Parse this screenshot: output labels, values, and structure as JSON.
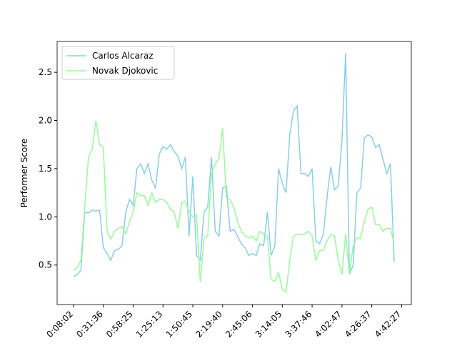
{
  "chart_data": {
    "type": "line",
    "y_label": "Performer Score",
    "x": [
      0,
      1,
      2,
      3,
      4,
      5,
      6,
      7,
      8,
      9,
      10,
      11,
      12,
      13,
      14,
      15,
      16,
      17,
      18,
      19,
      20,
      21,
      22,
      23,
      24,
      25,
      26,
      27,
      28,
      29,
      30,
      31,
      32,
      33,
      34,
      35,
      36,
      37,
      38,
      39,
      40,
      41,
      42,
      43,
      44,
      45,
      46,
      47,
      48,
      49,
      50,
      51,
      52,
      53,
      54,
      55,
      56,
      57,
      58,
      59,
      60,
      61,
      62,
      63,
      64,
      65,
      66,
      67,
      68,
      69,
      70,
      71,
      72,
      73,
      74,
      75,
      76,
      77,
      78,
      79,
      80,
      81,
      82,
      83,
      84,
      85,
      86
    ],
    "series": [
      {
        "name": "Carlos Alcaraz",
        "color": "#87ceeb",
        "values": [
          0.38,
          0.4,
          0.45,
          1.05,
          1.04,
          1.07,
          1.06,
          1.07,
          0.68,
          0.62,
          0.55,
          0.65,
          0.66,
          0.7,
          1.05,
          1.18,
          1.12,
          1.5,
          1.55,
          1.45,
          1.55,
          1.38,
          1.3,
          1.65,
          1.73,
          1.7,
          1.75,
          1.68,
          1.63,
          1.5,
          1.62,
          0.8,
          1.42,
          0.6,
          0.55,
          1.05,
          1.1,
          1.62,
          0.85,
          0.8,
          1.3,
          1.32,
          0.85,
          0.87,
          0.8,
          0.72,
          0.68,
          0.6,
          0.62,
          0.6,
          0.72,
          0.7,
          1.05,
          0.6,
          0.7,
          1.5,
          1.35,
          1.25,
          1.85,
          2.1,
          2.15,
          1.45,
          1.45,
          1.42,
          1.5,
          0.75,
          0.72,
          0.82,
          1.2,
          1.52,
          1.28,
          1.32,
          1.8,
          2.7,
          0.4,
          0.5,
          1.25,
          1.3,
          1.82,
          1.85,
          1.83,
          1.72,
          1.75,
          1.6,
          1.45,
          1.55,
          0.53
        ]
      },
      {
        "name": "Novak Djokovic",
        "color": "#98fb98",
        "values": [
          0.45,
          0.47,
          0.55,
          1.1,
          1.62,
          1.7,
          2.0,
          1.75,
          1.72,
          0.85,
          0.77,
          0.85,
          0.88,
          0.9,
          0.82,
          0.95,
          1.05,
          1.25,
          1.22,
          1.22,
          1.12,
          1.25,
          1.15,
          1.18,
          1.18,
          1.15,
          1.08,
          1.05,
          0.88,
          1.15,
          1.16,
          1.05,
          1.0,
          1.02,
          0.32,
          0.78,
          0.8,
          1.45,
          1.55,
          1.6,
          1.92,
          1.2,
          1.18,
          1.1,
          0.95,
          0.85,
          0.8,
          0.78,
          0.8,
          0.75,
          0.85,
          0.82,
          0.8,
          0.35,
          0.33,
          0.42,
          0.25,
          0.22,
          0.55,
          0.8,
          0.82,
          0.82,
          0.82,
          0.85,
          0.8,
          0.55,
          0.65,
          0.65,
          0.75,
          0.82,
          0.8,
          0.55,
          0.4,
          0.82,
          0.4,
          0.7,
          0.78,
          0.78,
          0.95,
          1.08,
          1.1,
          0.92,
          0.92,
          0.85,
          0.88,
          0.88,
          0.72
        ]
      }
    ],
    "xlim": [
      -4.4,
      90.6
    ],
    "xticks": [
      {
        "value": 0,
        "label": "0:08:02"
      },
      {
        "value": 8,
        "label": "0:31:36"
      },
      {
        "value": 16,
        "label": "0:58:25"
      },
      {
        "value": 24,
        "label": "1:25:13"
      },
      {
        "value": 32,
        "label": "1:50:45"
      },
      {
        "value": 40,
        "label": "2:19:40"
      },
      {
        "value": 48,
        "label": "2:45:06"
      },
      {
        "value": 56,
        "label": "3:14:05"
      },
      {
        "value": 64,
        "label": "3:37:46"
      },
      {
        "value": 72,
        "label": "4:02:47"
      },
      {
        "value": 80,
        "label": "4:26:37"
      },
      {
        "value": 88,
        "label": "4:42:27"
      }
    ],
    "ylim": [
      0.09,
      2.82
    ],
    "yticks": [
      0.5,
      {
        "value": 1,
        "label": "1.0"
      },
      1.5,
      {
        "value": 2,
        "label": "2.0"
      },
      2.5
    ],
    "legend": "upper left"
  }
}
